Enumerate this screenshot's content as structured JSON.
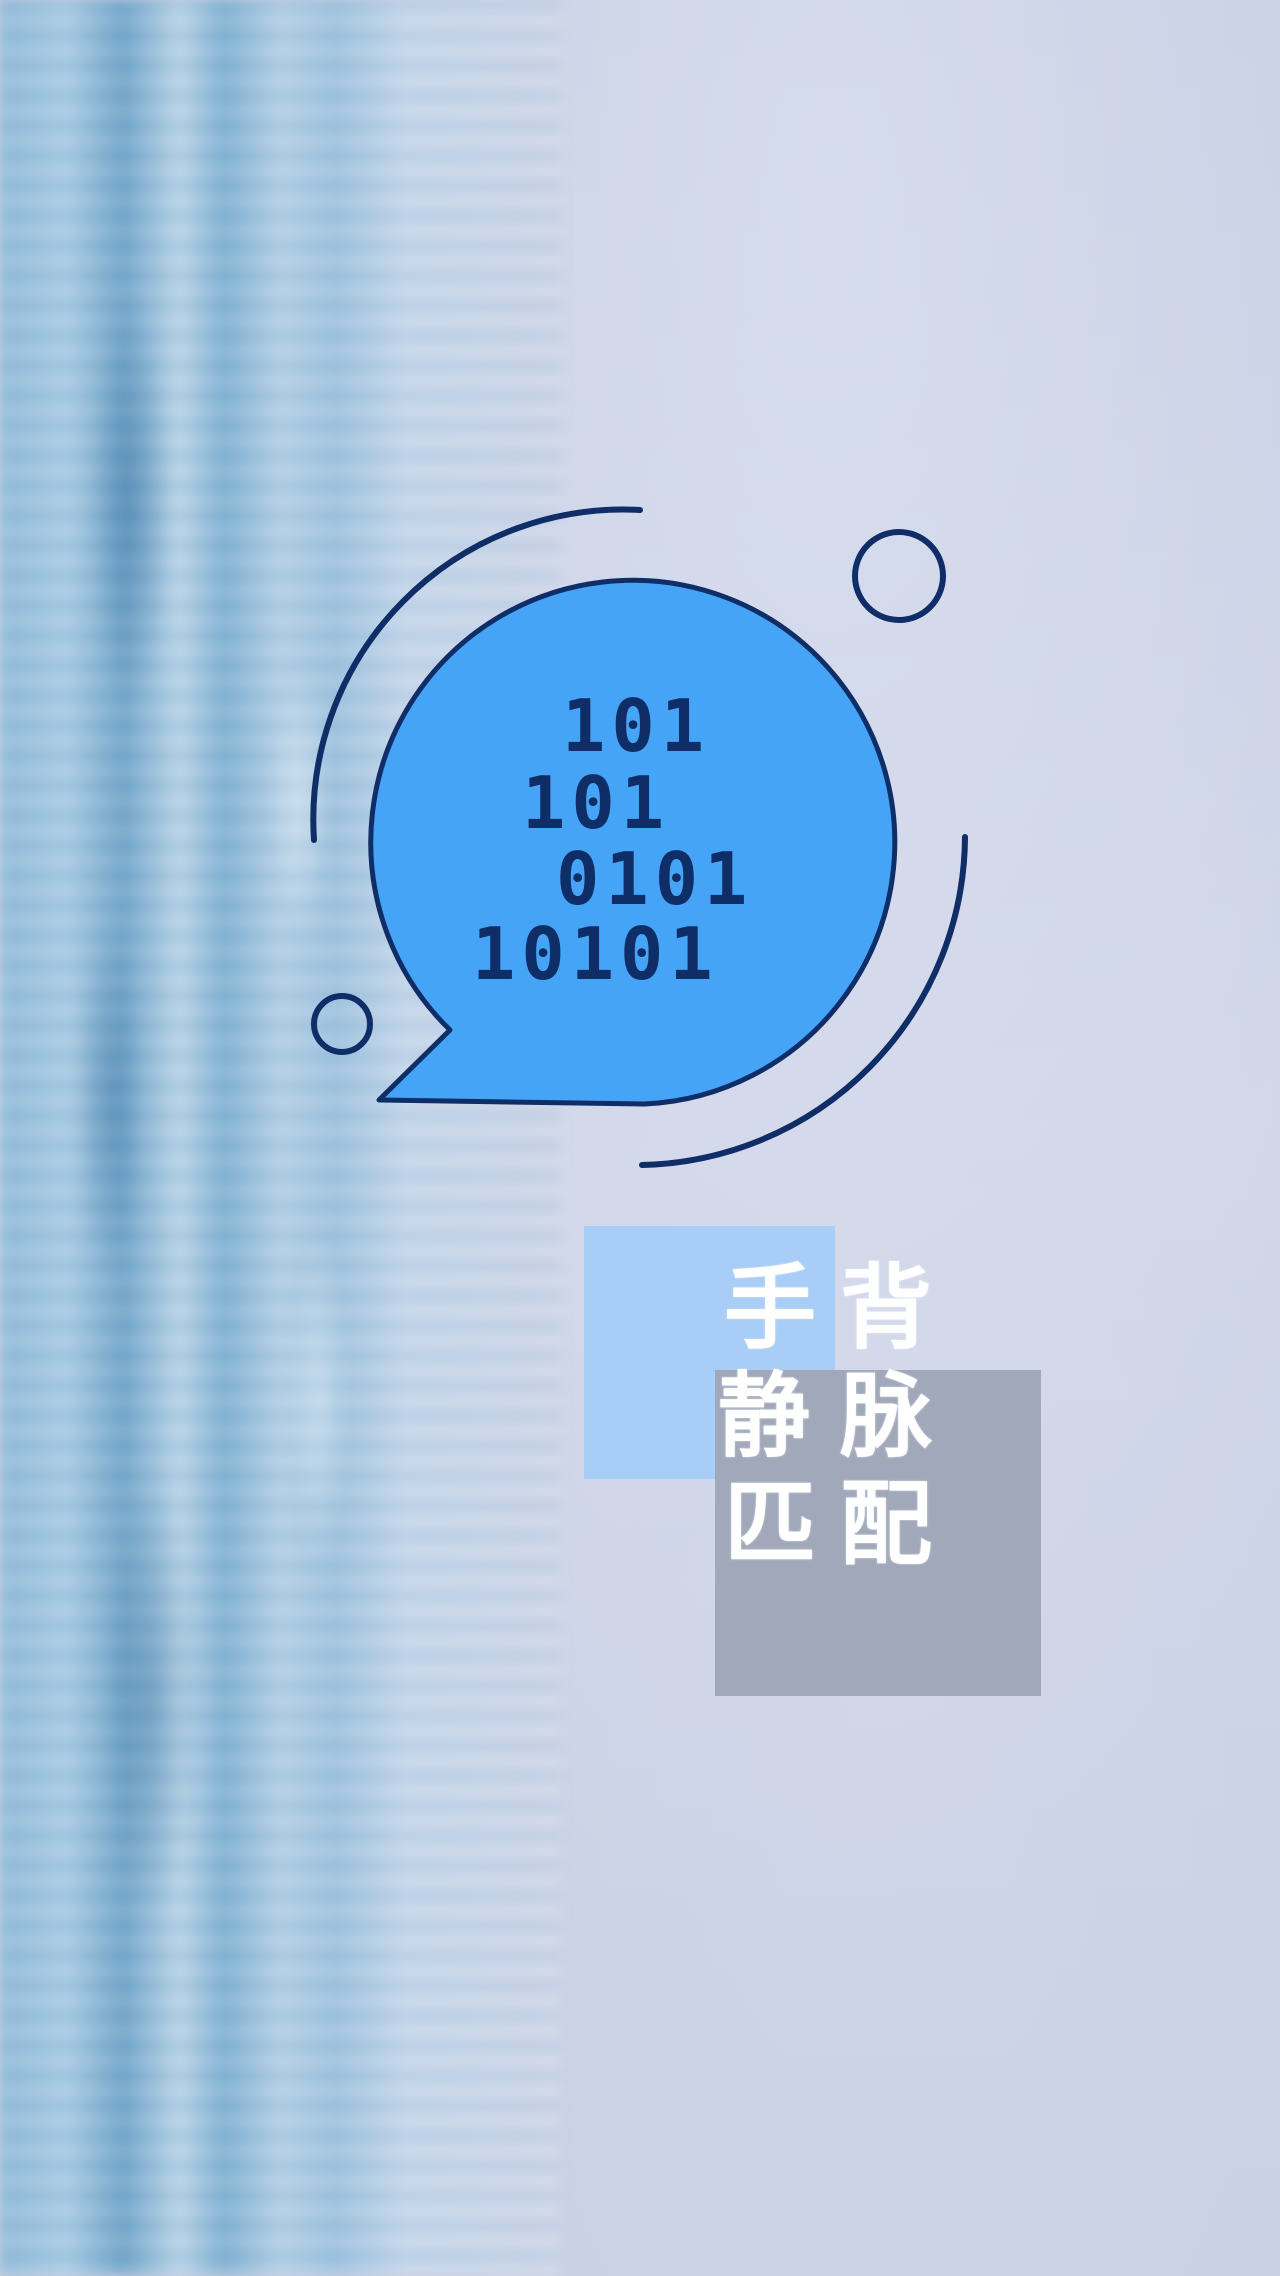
{
  "background": {
    "sky_color": "#cdd3e6",
    "water_color": "#7fb0d2"
  },
  "logo": {
    "icon": "binary-speech-bubble-icon",
    "bubble_color": "#45a4f5",
    "outline_color": "#0f2d66",
    "binary_lines": [
      "101",
      "101",
      "0101",
      "10101"
    ]
  },
  "title": {
    "column_1": [
      "手",
      "静",
      "匹"
    ],
    "column_2": [
      "背",
      "脉",
      "配"
    ],
    "light_box_color": "#a8cdf6",
    "gray_box_color": "#a0a8ba"
  }
}
